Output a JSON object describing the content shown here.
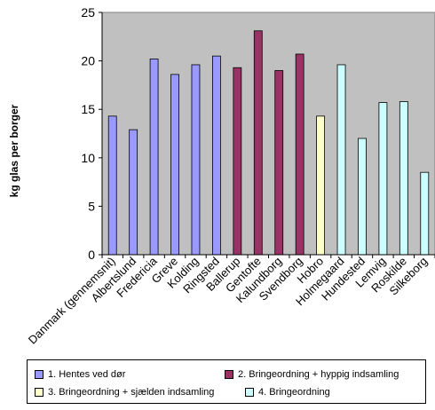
{
  "chart_data": {
    "type": "bar",
    "ylabel": "kg glas per borger",
    "xlabel": "",
    "ylim": [
      0,
      25
    ],
    "yticks": [
      0,
      5,
      10,
      15,
      20,
      25
    ],
    "grid": false,
    "legend_position": "bottom",
    "categories": [
      "Danmark (gennemsnit)",
      "Albertslund",
      "Fredericia",
      "Greve",
      "Kolding",
      "Ringsted",
      "Ballerup",
      "Gentofte",
      "Kalundborg",
      "Svendborg",
      "Hobro",
      "Holmegaard",
      "Hundested",
      "Lemvig",
      "Roskilde",
      "Silkeborg"
    ],
    "values": [
      14.3,
      12.9,
      20.2,
      18.6,
      19.6,
      20.5,
      19.3,
      23.1,
      19.0,
      20.7,
      14.3,
      19.6,
      12.0,
      15.7,
      15.8,
      8.5
    ],
    "groups": [
      0,
      0,
      0,
      0,
      0,
      0,
      1,
      1,
      1,
      1,
      2,
      3,
      3,
      3,
      3,
      3
    ],
    "series": [
      {
        "name": "1. Hentes ved dør",
        "color": "#9999ff"
      },
      {
        "name": "2. Bringeordning + hyppig indsamling",
        "color": "#993366"
      },
      {
        "name": "3. Bringeordning + sjælden indsamling",
        "color": "#ffffcc"
      },
      {
        "name": "4. Bringeordning",
        "color": "#ccffff"
      }
    ],
    "plot_background": "#c0c0c0"
  }
}
